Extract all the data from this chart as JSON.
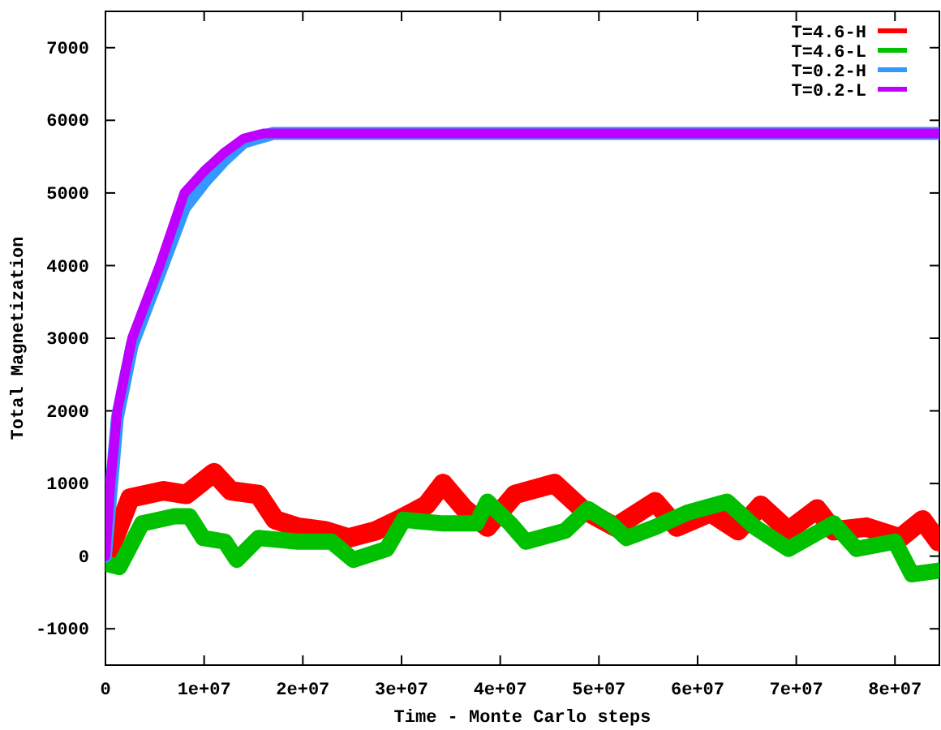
{
  "chart_data": {
    "type": "line",
    "xlabel": "Time - Monte Carlo steps",
    "ylabel": "Total Magnetization",
    "xlim": [
      0,
      84500000
    ],
    "ylim": [
      -1500,
      7500
    ],
    "xticks": [
      0,
      {
        "value": 10000000,
        "label": "1e+07"
      },
      {
        "value": 20000000,
        "label": "2e+07"
      },
      {
        "value": 30000000,
        "label": "3e+07"
      },
      {
        "value": 40000000,
        "label": "4e+07"
      },
      {
        "value": 50000000,
        "label": "5e+07"
      },
      {
        "value": 60000000,
        "label": "6e+07"
      },
      {
        "value": 70000000,
        "label": "7e+07"
      },
      {
        "value": 80000000,
        "label": "8e+07"
      }
    ],
    "yticks": [
      -1000,
      0,
      1000,
      2000,
      3000,
      4000,
      5000,
      6000,
      7000
    ],
    "grid": false,
    "legend": "top right",
    "series": [
      {
        "name": "T=4.6-H",
        "color": "#ff0000",
        "x": [
          0,
          800000,
          2500000,
          5900000,
          8200000,
          11000000,
          12700000,
          15500000,
          17200000,
          19500000,
          22300000,
          24600000,
          27400000,
          29700000,
          32500000,
          34200000,
          36400000,
          38700000,
          41500000,
          45500000,
          48300000,
          51700000,
          55700000,
          57900000,
          61300000,
          64100000,
          66400000,
          69200000,
          72100000,
          73800000,
          77100000,
          80500000,
          82800000,
          84400000
        ],
        "values": [
          0,
          200,
          800,
          900,
          850,
          1150,
          900,
          850,
          500,
          400,
          350,
          250,
          350,
          500,
          700,
          1000,
          650,
          400,
          850,
          1000,
          650,
          400,
          750,
          400,
          600,
          350,
          700,
          350,
          650,
          350,
          400,
          250,
          500,
          200
        ]
      },
      {
        "name": "T=4.6-L",
        "color": "#00c000",
        "x": [
          0,
          1400000,
          3700000,
          7000000,
          8500000,
          9900000,
          12100000,
          13300000,
          15500000,
          19500000,
          22900000,
          25100000,
          28500000,
          30200000,
          34200000,
          37600000,
          38700000,
          41000000,
          42600000,
          46600000,
          48900000,
          51200000,
          52800000,
          55700000,
          59000000,
          63000000,
          65800000,
          69200000,
          73800000,
          76100000,
          80000000,
          81700000,
          84400000
        ],
        "values": [
          -100,
          -150,
          450,
          550,
          550,
          250,
          200,
          -50,
          250,
          200,
          200,
          -50,
          100,
          500,
          450,
          450,
          750,
          450,
          200,
          350,
          650,
          450,
          250,
          400,
          600,
          750,
          400,
          100,
          450,
          100,
          200,
          -250,
          -200
        ]
      },
      {
        "name": "T=0.2-H",
        "color": "#3399ff",
        "x": [
          0,
          1200000,
          2700000,
          5500000,
          8000000,
          10000000,
          12000000,
          14000000,
          17000000,
          84500000
        ],
        "values": [
          0,
          1900,
          2900,
          3900,
          4800,
          5150,
          5450,
          5700,
          5820,
          5820
        ]
      },
      {
        "name": "T=0.2-L",
        "color": "#c000ff",
        "x": [
          0,
          500000,
          1200000,
          2700000,
          5500000,
          8000000,
          10000000,
          12000000,
          14000000,
          16000000,
          84500000
        ],
        "values": [
          0,
          1000,
          2000,
          3000,
          4000,
          5000,
          5300,
          5550,
          5750,
          5820,
          5820
        ]
      }
    ]
  }
}
